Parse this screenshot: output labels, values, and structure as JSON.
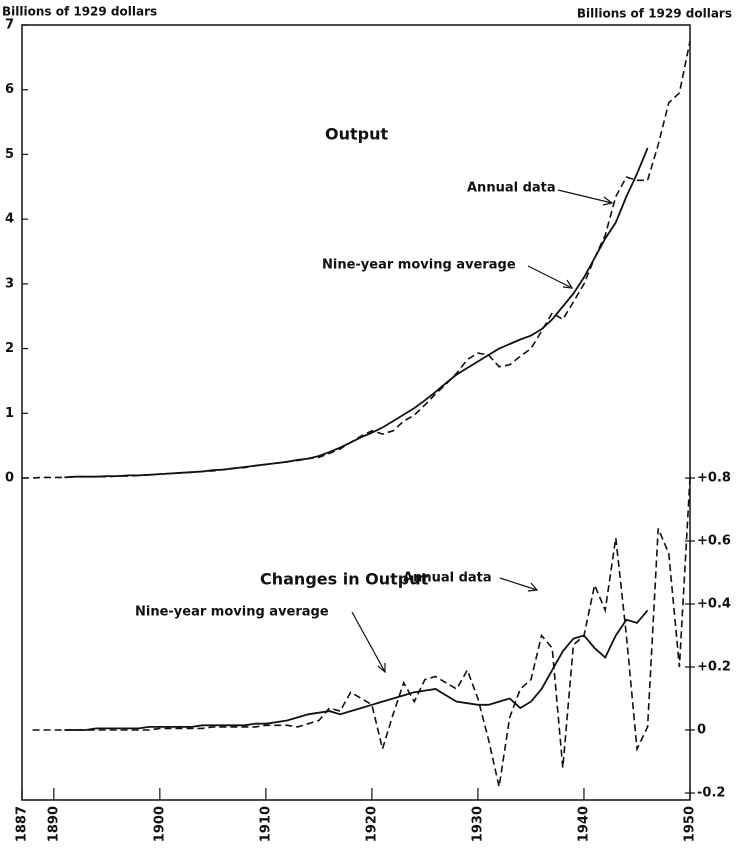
{
  "chart_data": [
    {
      "type": "line",
      "title": "Output",
      "ylabel": "Billions of 1929 dollars",
      "xlim": [
        1887,
        1950
      ],
      "ylim": [
        0,
        7
      ],
      "yticks": [
        0,
        1,
        2,
        3,
        4,
        5,
        6,
        7
      ],
      "x": [
        1887,
        1888,
        1889,
        1890,
        1891,
        1892,
        1893,
        1894,
        1895,
        1896,
        1897,
        1898,
        1899,
        1900,
        1901,
        1902,
        1903,
        1904,
        1905,
        1906,
        1907,
        1908,
        1909,
        1910,
        1911,
        1912,
        1913,
        1914,
        1915,
        1916,
        1917,
        1918,
        1919,
        1920,
        1921,
        1922,
        1923,
        1924,
        1925,
        1926,
        1927,
        1928,
        1929,
        1930,
        1931,
        1932,
        1933,
        1934,
        1935,
        1936,
        1937,
        1938,
        1939,
        1940,
        1941,
        1942,
        1943,
        1944,
        1945,
        1946,
        1947,
        1948,
        1949,
        1950
      ],
      "series": [
        {
          "name": "Annual data",
          "color": "#111111",
          "style": "dashed",
          "values": [
            0,
            0,
            0.01,
            0.01,
            0.01,
            0.02,
            0.02,
            0.02,
            0.02,
            0.03,
            0.03,
            0.04,
            0.05,
            0.06,
            0.07,
            0.08,
            0.09,
            0.1,
            0.11,
            0.13,
            0.15,
            0.16,
            0.19,
            0.21,
            0.23,
            0.25,
            0.27,
            0.3,
            0.32,
            0.38,
            0.45,
            0.55,
            0.65,
            0.73,
            0.68,
            0.73,
            0.88,
            0.97,
            1.13,
            1.3,
            1.45,
            1.62,
            1.83,
            1.93,
            1.9,
            1.72,
            1.75,
            1.88,
            2.0,
            2.27,
            2.55,
            2.45,
            2.72,
            3.0,
            3.4,
            3.75,
            4.35,
            4.65,
            4.6,
            4.6,
            5.15,
            5.8,
            5.95,
            6.75
          ]
        },
        {
          "name": "Nine-year moving average",
          "color": "#111111",
          "style": "solid",
          "values": [
            null,
            null,
            null,
            null,
            0.01,
            0.02,
            0.02,
            0.02,
            0.03,
            0.03,
            0.04,
            0.04,
            0.05,
            0.06,
            0.07,
            0.08,
            0.09,
            0.1,
            0.12,
            0.13,
            0.15,
            0.17,
            0.19,
            0.21,
            0.23,
            0.25,
            0.28,
            0.3,
            0.34,
            0.4,
            0.47,
            0.55,
            0.63,
            0.7,
            0.78,
            0.88,
            0.98,
            1.08,
            1.2,
            1.33,
            1.47,
            1.6,
            1.7,
            1.8,
            1.9,
            2.0,
            2.07,
            2.14,
            2.2,
            2.3,
            2.45,
            2.65,
            2.85,
            3.1,
            3.4,
            3.7,
            3.95,
            4.35,
            4.7,
            5.1,
            null,
            null,
            null,
            null
          ]
        }
      ]
    },
    {
      "type": "line",
      "title": "Changes in Output",
      "ylabel": "Billions of 1929 dollars",
      "xlim": [
        1887,
        1950
      ],
      "xticks": [
        1887,
        1890,
        1900,
        1910,
        1920,
        1930,
        1940,
        1950
      ],
      "ylim": [
        -0.2,
        0.8
      ],
      "yticks": [
        -0.2,
        0,
        {
          "value": 0.2,
          "label": "+0.2"
        },
        {
          "value": 0.4,
          "label": "+0.4"
        },
        {
          "value": 0.6,
          "label": "+0.6"
        },
        {
          "value": 0.8,
          "label": "+0.8"
        }
      ],
      "x": [
        1887,
        1888,
        1889,
        1890,
        1891,
        1892,
        1893,
        1894,
        1895,
        1896,
        1897,
        1898,
        1899,
        1900,
        1901,
        1902,
        1903,
        1904,
        1905,
        1906,
        1907,
        1908,
        1909,
        1910,
        1911,
        1912,
        1913,
        1914,
        1915,
        1916,
        1917,
        1918,
        1919,
        1920,
        1921,
        1922,
        1923,
        1924,
        1925,
        1926,
        1927,
        1928,
        1929,
        1930,
        1931,
        1932,
        1933,
        1934,
        1935,
        1936,
        1937,
        1938,
        1939,
        1940,
        1941,
        1942,
        1943,
        1944,
        1945,
        1946,
        1947,
        1948,
        1949,
        1950
      ],
      "series": [
        {
          "name": "Annual data",
          "color": "#111111",
          "style": "dashed",
          "values": [
            null,
            0,
            0,
            0,
            0,
            0,
            0,
            0,
            0,
            0,
            0,
            0,
            0,
            0.005,
            0.005,
            0.005,
            0.005,
            0.005,
            0.01,
            0.01,
            0.01,
            0.01,
            0.01,
            0.015,
            0.015,
            0.015,
            0.01,
            0.02,
            0.03,
            0.07,
            0.06,
            0.12,
            0.1,
            0.08,
            -0.06,
            0.05,
            0.15,
            0.09,
            0.16,
            0.17,
            0.15,
            0.13,
            0.19,
            0.1,
            -0.03,
            -0.18,
            0.04,
            0.13,
            0.16,
            0.3,
            0.26,
            -0.12,
            0.27,
            0.3,
            0.46,
            0.38,
            0.61,
            0.3,
            -0.06,
            0.01,
            0.64,
            0.56,
            0.2,
            0.8
          ]
        },
        {
          "name": "Nine-year moving average",
          "color": "#111111",
          "style": "solid",
          "values": [
            null,
            null,
            null,
            null,
            0,
            0,
            0,
            0.005,
            0.005,
            0.005,
            0.005,
            0.005,
            0.01,
            0.01,
            0.01,
            0.01,
            0.01,
            0.015,
            0.015,
            0.015,
            0.015,
            0.015,
            0.02,
            0.02,
            0.025,
            0.03,
            0.04,
            0.05,
            0.055,
            0.06,
            0.05,
            0.06,
            0.07,
            0.08,
            0.09,
            0.1,
            0.11,
            0.12,
            0.125,
            0.13,
            0.11,
            0.09,
            0.085,
            0.08,
            0.08,
            0.09,
            0.1,
            0.07,
            0.09,
            0.13,
            0.19,
            0.25,
            0.29,
            0.3,
            0.26,
            0.23,
            0.3,
            0.35,
            0.34,
            0.38,
            null,
            null,
            null,
            null
          ]
        }
      ]
    }
  ]
}
